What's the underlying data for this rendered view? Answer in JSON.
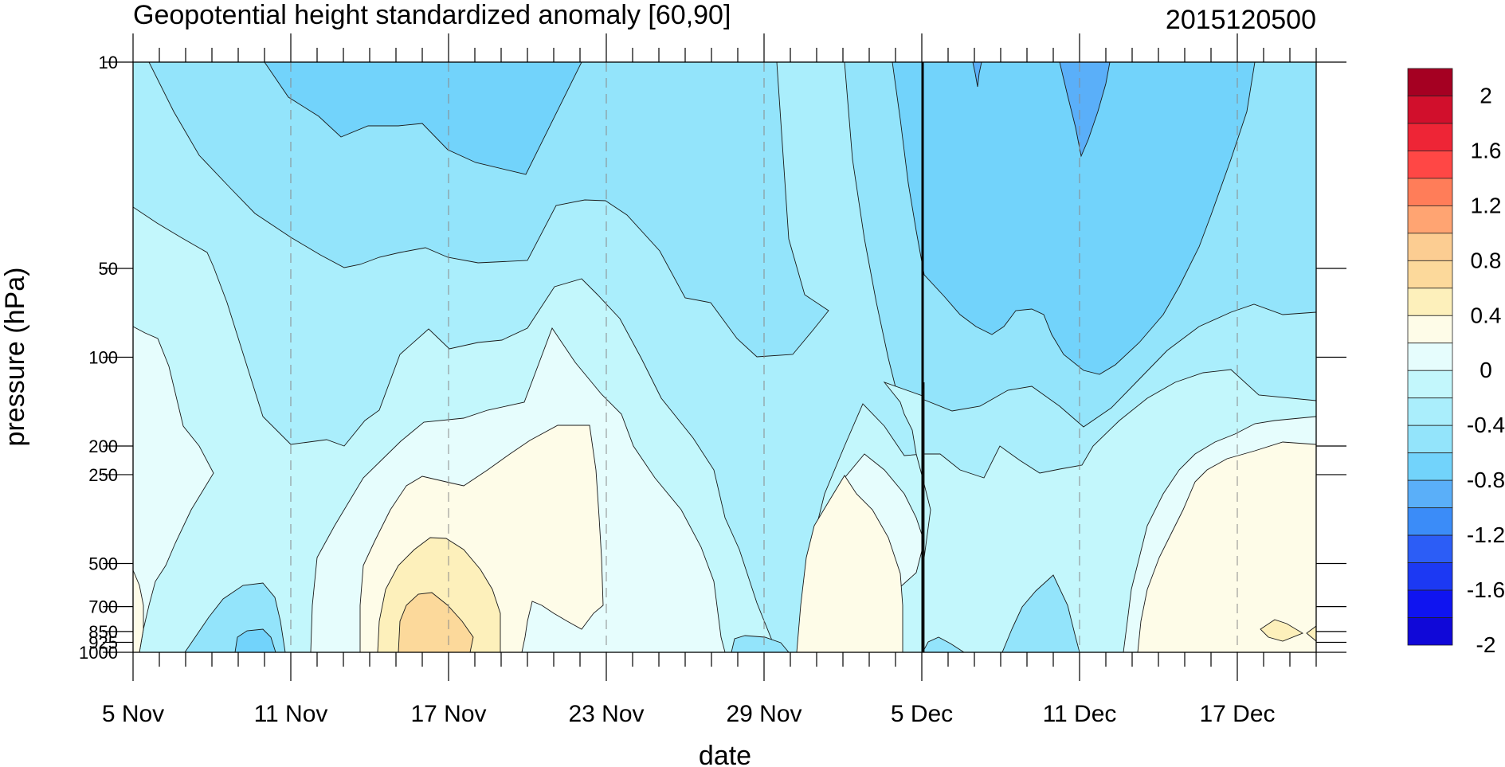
{
  "chart_data": {
    "type": "heatmap",
    "title": "Geopotential height standardized anomaly [60,90]",
    "subtitle": "2015120500",
    "xlabel": "date",
    "ylabel": "pressure (hPa)",
    "x_tick_labels": [
      "5 Nov",
      "11 Nov",
      "17 Nov",
      "23 Nov",
      "29 Nov",
      "5 Dec",
      "11 Dec",
      "17 Dec"
    ],
    "x_range": [
      "5 Nov",
      "20 Dec"
    ],
    "y_ticks": [
      "10",
      "50",
      "100",
      "200",
      "250",
      "500",
      "700",
      "850",
      "925",
      "1000"
    ],
    "y_axis_scale": "log pressure (inverted)",
    "y_range_hPa": [
      1000,
      10
    ],
    "current_date_marker": "5 Dec",
    "colorbar": {
      "tick_labels": [
        "2",
        "1.6",
        "1.2",
        "0.8",
        "0.4",
        "0",
        "-0.4",
        "-0.8",
        "-1.2",
        "-1.6",
        "-2"
      ],
      "colors": [
        "#a50022",
        "#d10f2c",
        "#ee2536",
        "#ff4745",
        "#ff7d59",
        "#ffa472",
        "#fccd92",
        "#fcd99b",
        "#fdf0bb",
        "#fefce8",
        "#e6fdfd",
        "#c3f7fc",
        "#aaeefc",
        "#93e4fb",
        "#72d3fb",
        "#5aaff9",
        "#3b8cf8",
        "#2c5df6",
        "#1c39f3",
        "#0f14f0",
        "#1008d8"
      ]
    },
    "contour_levels": [
      -1.2,
      -0.8,
      -0.6,
      -0.4,
      -0.2,
      0,
      0.2,
      0.4
    ],
    "fill_colors": {
      "below_-1.2": "#5aaff9",
      "-1.2_to_-0.8": "#72d3fb",
      "-0.8_to_-0.6": "#93e4fb",
      "-0.6_to_-0.4": "#aaeefc",
      "-0.4_to_-0.2": "#c3f7fc",
      "-0.2_to_0": "#e6fdfd",
      "0_to_0.2": "#fefce8",
      "0.2_to_0.4": "#fdf0bb",
      "0.4_to_0.6": "#fcd99b"
    }
  }
}
